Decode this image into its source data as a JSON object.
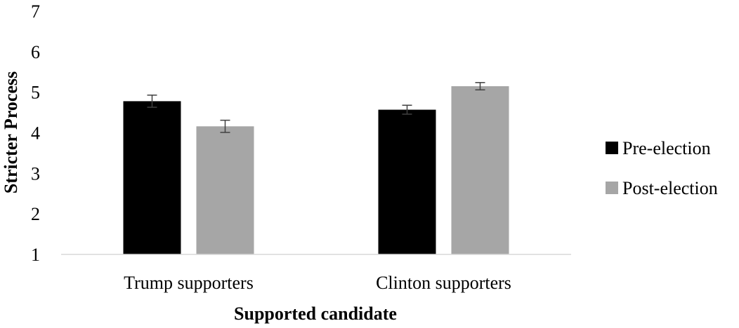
{
  "chart_data": {
    "type": "bar",
    "title": "",
    "xlabel": "Supported candidate",
    "ylabel": "Stricter Process",
    "ylim": [
      1,
      7
    ],
    "yticks": [
      "1",
      "2",
      "3",
      "4",
      "5",
      "6",
      "7"
    ],
    "grid": false,
    "legend_position": "right",
    "categories": [
      "Trump supporters",
      "Clinton supporters"
    ],
    "series": [
      {
        "name": "Pre-election",
        "color": "#000000",
        "values": [
          4.78,
          4.57
        ],
        "error": [
          0.15,
          0.11
        ]
      },
      {
        "name": "Post-election",
        "color": "#a6a6a6",
        "values": [
          4.16,
          5.15
        ],
        "error": [
          0.15,
          0.09
        ]
      }
    ],
    "error_bar_color": "#404040",
    "axis_color": "#d9d9d9"
  }
}
